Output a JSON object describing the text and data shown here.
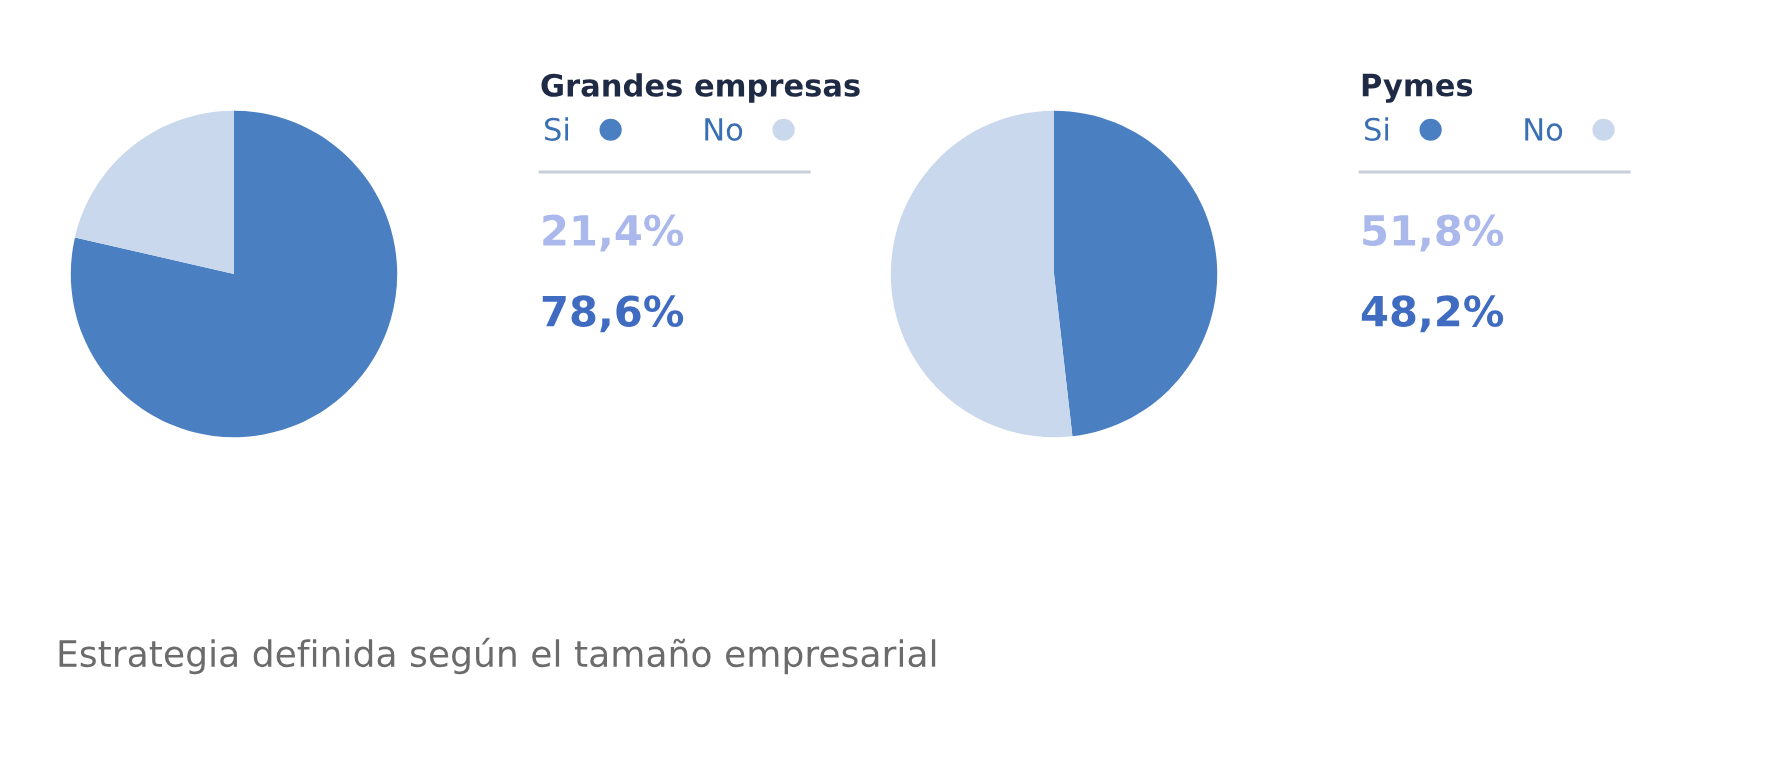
{
  "chart_data": [
    {
      "type": "pie",
      "title": "Grandes empresas",
      "categories": [
        "Si",
        "No"
      ],
      "values": [
        78.6,
        21.4
      ],
      "colors": [
        "#4a7fc1",
        "#c9d8ec"
      ],
      "legend": "right",
      "annotations": [
        "21,4%",
        "78,6%",
        "Estrategia definida según el tamaño empresarial"
      ]
    },
    {
      "type": "pie",
      "title": "Pymes",
      "categories": [
        "Si",
        "No"
      ],
      "values": [
        48.2,
        51.8
      ],
      "colors": [
        "#4a7fc1",
        "#c9d8ec"
      ],
      "legend": "right",
      "annotations": [
        "51,8%",
        "48,2%"
      ]
    }
  ]
}
